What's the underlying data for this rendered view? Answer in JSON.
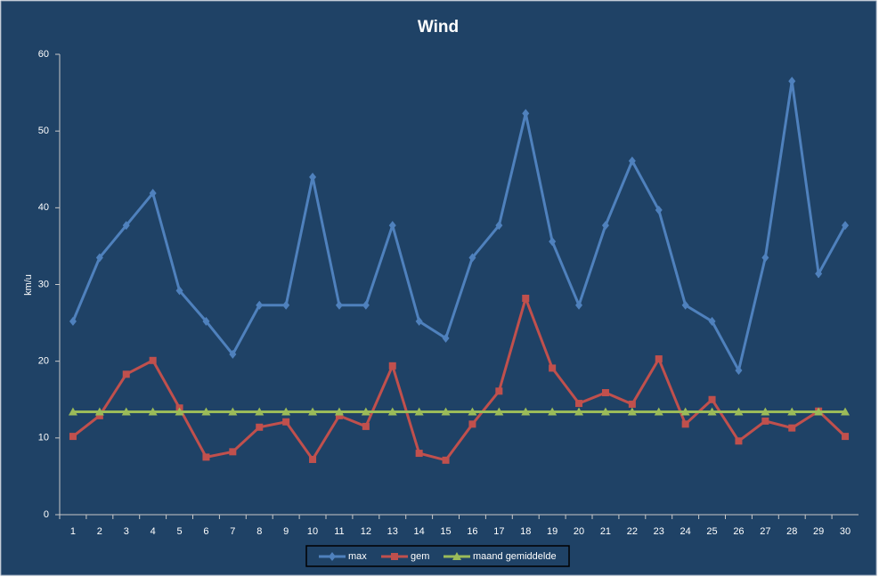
{
  "chart_data": {
    "type": "line",
    "title": "Wind",
    "y_label": "km/u",
    "categories": [
      "1",
      "2",
      "3",
      "4",
      "5",
      "6",
      "7",
      "8",
      "9",
      "10",
      "11",
      "12",
      "13",
      "14",
      "15",
      "16",
      "17",
      "18",
      "19",
      "20",
      "21",
      "22",
      "23",
      "24",
      "25",
      "26",
      "27",
      "28",
      "29",
      "30"
    ],
    "series": [
      {
        "name": "max",
        "color": "#4f81bd",
        "marker": "diamond",
        "values": [
          25.2,
          33.5,
          37.7,
          41.9,
          29.2,
          25.2,
          20.9,
          27.3,
          27.3,
          44.0,
          27.3,
          27.3,
          37.7,
          25.2,
          23.0,
          33.5,
          37.7,
          52.3,
          35.6,
          27.3,
          37.7,
          46.1,
          39.7,
          27.3,
          25.2,
          18.8,
          33.5,
          56.5,
          31.4,
          37.7
        ]
      },
      {
        "name": "gem",
        "color": "#c0504d",
        "marker": "square",
        "values": [
          10.2,
          12.9,
          18.3,
          20.1,
          13.9,
          7.5,
          8.2,
          11.4,
          12.1,
          7.2,
          12.9,
          11.5,
          19.4,
          8.0,
          7.1,
          11.8,
          16.1,
          28.2,
          19.1,
          14.5,
          15.9,
          14.4,
          20.3,
          11.8,
          15.0,
          9.6,
          12.2,
          11.3,
          13.5,
          10.2
        ]
      },
      {
        "name": "maand gemiddelde",
        "color": "#9bbb59",
        "marker": "triangle",
        "values": [
          13.4,
          13.4,
          13.4,
          13.4,
          13.4,
          13.4,
          13.4,
          13.4,
          13.4,
          13.4,
          13.4,
          13.4,
          13.4,
          13.4,
          13.4,
          13.4,
          13.4,
          13.4,
          13.4,
          13.4,
          13.4,
          13.4,
          13.4,
          13.4,
          13.4,
          13.4,
          13.4,
          13.4,
          13.4,
          13.4
        ]
      }
    ],
    "ylim": [
      0,
      60
    ],
    "yticks": [
      0,
      10,
      20,
      30,
      40,
      50,
      60
    ],
    "grid": false,
    "legend": "bottom"
  }
}
